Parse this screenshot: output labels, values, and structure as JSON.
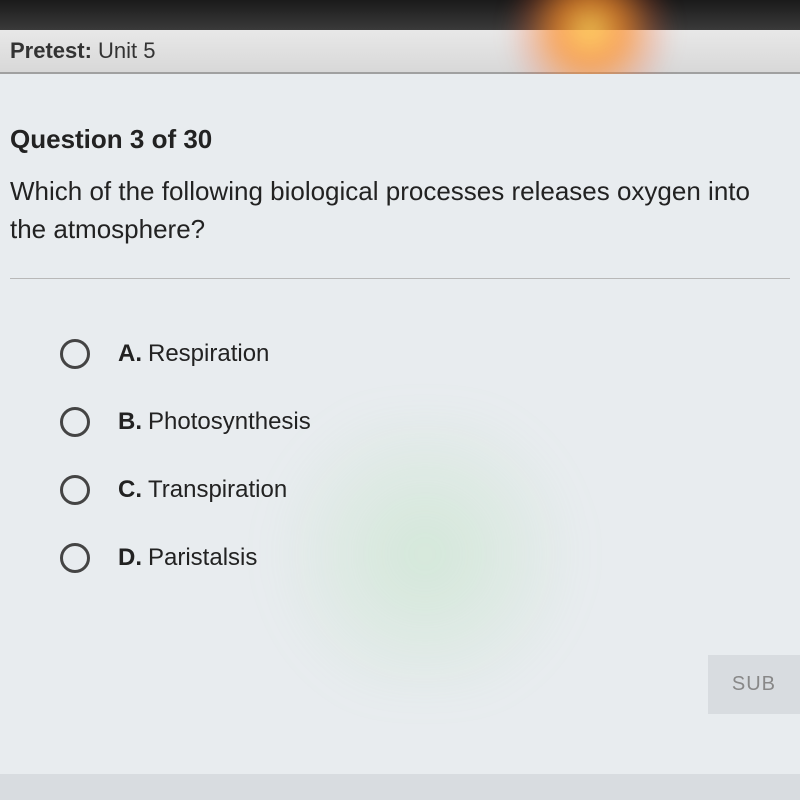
{
  "header": {
    "prefix": "Pretest:",
    "unit": "Unit 5"
  },
  "question": {
    "number_label": "Question 3 of 30",
    "text": "Which of the following biological processes releases oxygen into the atmosphere?"
  },
  "options": [
    {
      "letter": "A.",
      "text": "Respiration"
    },
    {
      "letter": "B.",
      "text": "Photosynthesis"
    },
    {
      "letter": "C.",
      "text": "Transpiration"
    },
    {
      "letter": "D.",
      "text": "Paristalsis"
    }
  ],
  "submit_label": "SUB"
}
